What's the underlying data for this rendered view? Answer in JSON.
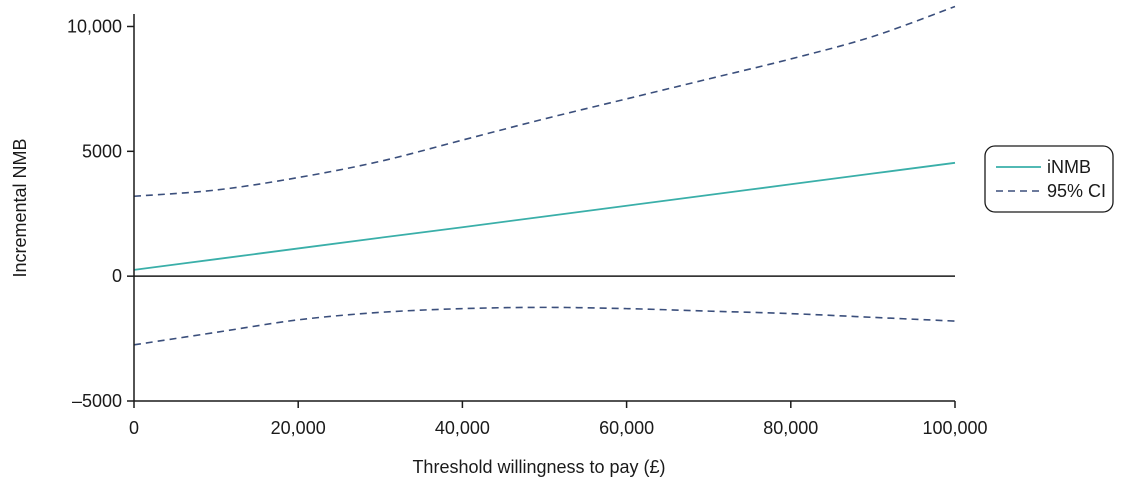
{
  "chart_data": {
    "type": "line",
    "xlabel": "Threshold willingness to pay (£)",
    "ylabel": "Incremental NMB",
    "xlim": [
      0,
      100000
    ],
    "ylim": [
      -5000,
      10500
    ],
    "x_ticks": [
      0,
      20000,
      40000,
      60000,
      80000,
      100000
    ],
    "x_tick_labels": [
      "0",
      "20,000",
      "40,000",
      "60,000",
      "80,000",
      "100,000"
    ],
    "y_ticks": [
      -5000,
      0,
      5000,
      10000
    ],
    "y_tick_labels": [
      "–5000",
      "0",
      "5000",
      "10,000"
    ],
    "grid": false,
    "legend_position": "right",
    "x": [
      0,
      10000,
      20000,
      30000,
      40000,
      50000,
      60000,
      70000,
      80000,
      90000,
      100000
    ],
    "series": [
      {
        "name": "iNMB",
        "style": "solid",
        "color": "#3aafa9",
        "values": [
          250,
          680,
          1110,
          1540,
          1960,
          2390,
          2820,
          3250,
          3680,
          4110,
          4540
        ]
      },
      {
        "name": "95% CI",
        "style": "dashed",
        "color": "#3b4f7c",
        "values": [
          3200,
          3450,
          3950,
          4600,
          5450,
          6300,
          7100,
          7900,
          8700,
          9600,
          10800
        ]
      },
      {
        "name": "95% CI",
        "style": "dashed",
        "color": "#3b4f7c",
        "show_in_legend": false,
        "values": [
          -2750,
          -2250,
          -1750,
          -1450,
          -1300,
          -1250,
          -1300,
          -1400,
          -1500,
          -1650,
          -1800
        ]
      }
    ]
  }
}
